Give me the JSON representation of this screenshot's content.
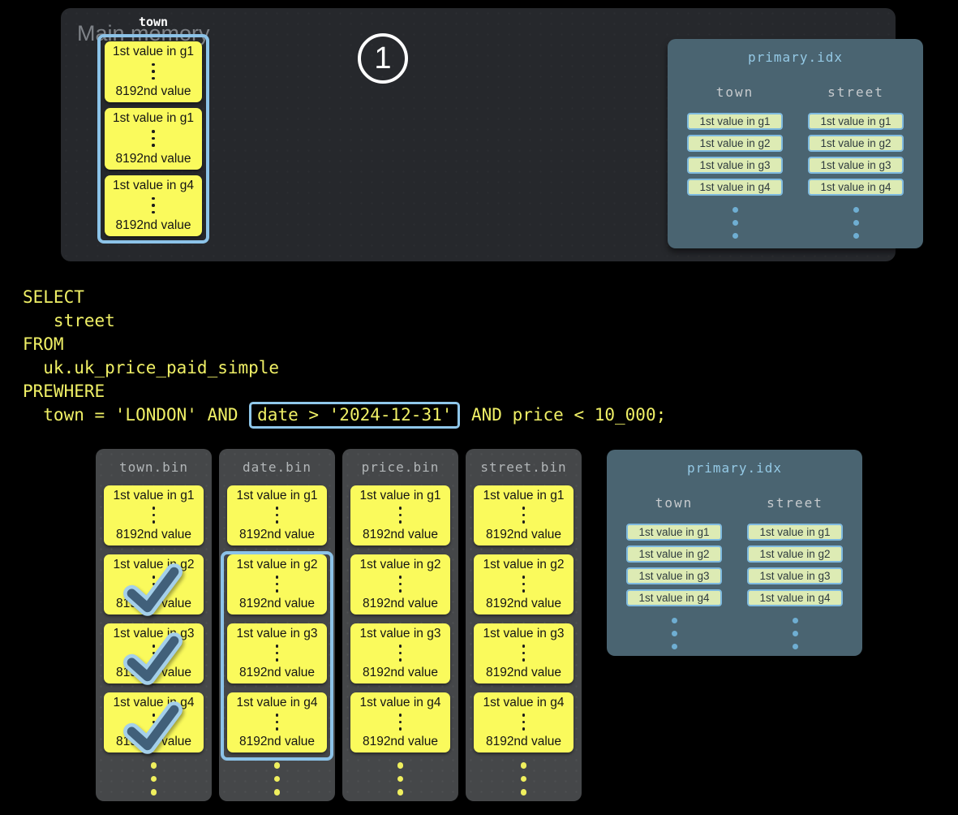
{
  "colors": {
    "background": "#000000",
    "main_memory_panel": "#26282C",
    "bin_panel": "#454749",
    "idx_panel": "#4A6471",
    "granule_block_yellow": "#FAFA5C",
    "accent_blue_border": "#8CC3E8",
    "chip_green": "#DDEBB4",
    "sql_yellow": "#F0F066",
    "check_dark": "#41607A",
    "check_light": "#A4CFEA"
  },
  "main_memory": {
    "title": "Main memory",
    "step_number": "1",
    "column": {
      "label": "town",
      "blocks": [
        {
          "top": "1st value in g1",
          "bottom": "8192nd value"
        },
        {
          "top": "1st value in g1",
          "bottom": "8192nd value"
        },
        {
          "top": "1st value in g4",
          "bottom": "8192nd value"
        }
      ]
    }
  },
  "sql": {
    "lines": [
      "SELECT",
      "   street",
      "FROM",
      "  uk.uk_price_paid_simple",
      "PREWHERE"
    ],
    "condition_line": {
      "before": "  town = 'LONDON' AND ",
      "highlighted": "date > '2024-12-31'",
      "after": " AND price < 10_000;"
    }
  },
  "primary_index": {
    "title": "primary.idx",
    "columns": [
      {
        "header": "town",
        "chips": [
          "1st value in g1",
          "1st value in g2",
          "1st value in g3",
          "1st value in g4"
        ]
      },
      {
        "header": "street",
        "chips": [
          "1st value in g1",
          "1st value in g2",
          "1st value in g3",
          "1st value in g4"
        ]
      }
    ]
  },
  "bins": [
    {
      "title": "town.bin",
      "blocks": [
        {
          "top": "1st value in g1",
          "bottom": "8192nd value",
          "checked": false
        },
        {
          "top": "1st value in g2",
          "bottom": "8192nd value",
          "checked": true
        },
        {
          "top": "1st value in g3",
          "bottom": "8192nd value",
          "checked": true
        },
        {
          "top": "1st value in g4",
          "bottom": "8192nd value",
          "checked": true
        }
      ],
      "selection": false
    },
    {
      "title": "date.bin",
      "blocks": [
        {
          "top": "1st value in g1",
          "bottom": "8192nd value",
          "checked": false
        },
        {
          "top": "1st value in g2",
          "bottom": "8192nd value",
          "checked": false
        },
        {
          "top": "1st value in g3",
          "bottom": "8192nd value",
          "checked": false
        },
        {
          "top": "1st value in g4",
          "bottom": "8192nd value",
          "checked": false
        }
      ],
      "selection": true
    },
    {
      "title": "price.bin",
      "blocks": [
        {
          "top": "1st value in g1",
          "bottom": "8192nd value",
          "checked": false
        },
        {
          "top": "1st value in g2",
          "bottom": "8192nd value",
          "checked": false
        },
        {
          "top": "1st value in g3",
          "bottom": "8192nd value",
          "checked": false
        },
        {
          "top": "1st value in g4",
          "bottom": "8192nd value",
          "checked": false
        }
      ],
      "selection": false
    },
    {
      "title": "street.bin",
      "blocks": [
        {
          "top": "1st value in g1",
          "bottom": "8192nd value",
          "checked": false
        },
        {
          "top": "1st value in g2",
          "bottom": "8192nd value",
          "checked": false
        },
        {
          "top": "1st value in g3",
          "bottom": "8192nd value",
          "checked": false
        },
        {
          "top": "1st value in g4",
          "bottom": "8192nd value",
          "checked": false
        }
      ],
      "selection": false
    }
  ]
}
